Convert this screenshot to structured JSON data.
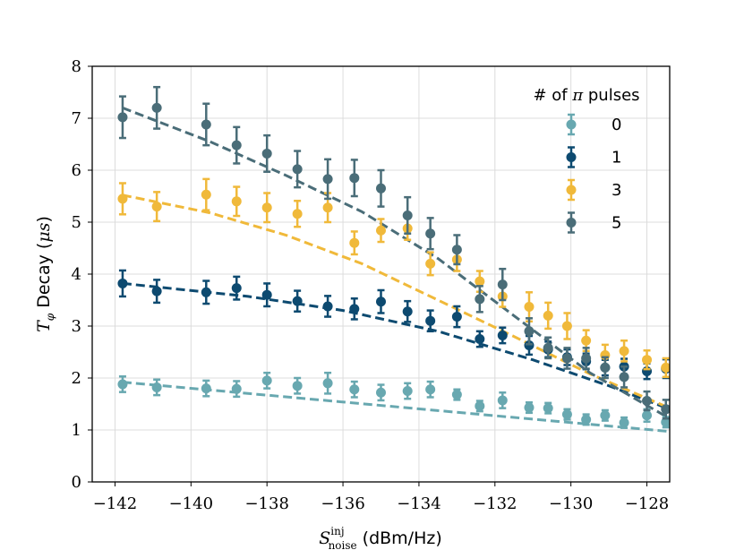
{
  "chart_data": {
    "type": "scatter",
    "title": "",
    "xlabel_main": "S",
    "xlabel_sup": "inj",
    "xlabel_sub": "noise",
    "xlabel_unit": " (dBm/Hz)",
    "ylabel_sym": "T",
    "ylabel_sub": "φ",
    "ylabel_text": " Decay (",
    "ylabel_unit": "μs",
    "ylabel_close": ")",
    "xlim": [
      -142.6,
      -127.4
    ],
    "ylim": [
      0,
      8
    ],
    "xticks": [
      -142,
      -140,
      -138,
      -136,
      -134,
      -132,
      -130,
      -128
    ],
    "xtick_labels": [
      "−142",
      "−140",
      "−138",
      "−136",
      "−134",
      "−132",
      "−130",
      "−128"
    ],
    "yticks": [
      0,
      1,
      2,
      3,
      4,
      5,
      6,
      7,
      8
    ],
    "ytick_labels": [
      "0",
      "1",
      "2",
      "3",
      "4",
      "5",
      "6",
      "7",
      "8"
    ],
    "grid": true,
    "legend_title_hash": "# of ",
    "legend_title_pi": "π",
    "legend_title_rest": " pulses",
    "legend_position": "top-right",
    "x": [
      -141.8,
      -140.9,
      -139.6,
      -138.8,
      -138.0,
      -137.2,
      -136.4,
      -135.7,
      -135.0,
      -134.3,
      -133.7,
      -133.0,
      -132.4,
      -131.8,
      -131.1,
      -130.6,
      -130.1,
      -129.6,
      -129.1,
      -128.6,
      -128.0,
      -127.5
    ],
    "series": [
      {
        "name": "0",
        "color": "#68a8b0",
        "values": [
          1.88,
          1.82,
          1.8,
          1.79,
          1.95,
          1.85,
          1.9,
          1.78,
          1.72,
          1.75,
          1.78,
          1.68,
          1.46,
          1.57,
          1.43,
          1.42,
          1.3,
          1.2,
          1.28,
          1.14,
          1.28,
          1.15
        ],
        "errors": [
          0.15,
          0.15,
          0.15,
          0.15,
          0.15,
          0.15,
          0.2,
          0.15,
          0.15,
          0.15,
          0.15,
          0.1,
          0.1,
          0.15,
          0.1,
          0.1,
          0.1,
          0.1,
          0.1,
          0.1,
          0.12,
          0.1
        ],
        "fit_x": [
          -141.8,
          -127.4
        ],
        "fit_y": [
          1.92,
          0.97
        ]
      },
      {
        "name": "1",
        "color": "#0d4a70",
        "values": [
          3.82,
          3.67,
          3.65,
          3.73,
          3.6,
          3.48,
          3.38,
          3.33,
          3.47,
          3.28,
          3.1,
          3.18,
          2.75,
          2.82,
          2.63,
          2.55,
          2.4,
          2.32,
          2.2,
          2.22,
          2.13,
          2.18
        ],
        "errors": [
          0.25,
          0.22,
          0.22,
          0.22,
          0.22,
          0.2,
          0.2,
          0.2,
          0.22,
          0.2,
          0.2,
          0.2,
          0.15,
          0.15,
          0.18,
          0.15,
          0.15,
          0.15,
          0.15,
          0.15,
          0.15,
          0.18
        ],
        "fit_x": [
          -141.8,
          -138.5,
          -136.0,
          -133.5,
          -131.0,
          -129.0,
          -127.4
        ],
        "fit_y": [
          3.82,
          3.57,
          3.3,
          2.9,
          2.35,
          1.85,
          1.4
        ]
      },
      {
        "name": "3",
        "color": "#f0b93a",
        "values": [
          5.45,
          5.3,
          5.53,
          5.4,
          5.28,
          5.16,
          5.28,
          4.6,
          4.84,
          4.88,
          4.2,
          4.28,
          3.86,
          3.57,
          3.37,
          3.2,
          3.0,
          2.72,
          2.44,
          2.52,
          2.35,
          2.2
        ],
        "errors": [
          0.3,
          0.28,
          0.3,
          0.28,
          0.28,
          0.25,
          0.28,
          0.22,
          0.22,
          0.22,
          0.22,
          0.22,
          0.2,
          0.2,
          0.28,
          0.25,
          0.25,
          0.2,
          0.2,
          0.2,
          0.18,
          0.18
        ],
        "fit_x": [
          -141.8,
          -139.5,
          -137.5,
          -135.5,
          -133.5,
          -131.5,
          -129.5,
          -127.4
        ],
        "fit_y": [
          5.52,
          5.18,
          4.75,
          4.2,
          3.5,
          2.8,
          2.08,
          1.42
        ]
      },
      {
        "name": "5",
        "color": "#4a6d78",
        "values": [
          7.02,
          7.2,
          6.88,
          6.48,
          6.32,
          6.02,
          5.83,
          5.85,
          5.65,
          5.13,
          4.78,
          4.47,
          3.52,
          3.8,
          2.9,
          2.58,
          2.38,
          2.38,
          2.2,
          2.02,
          1.56,
          1.4
        ],
        "errors": [
          0.4,
          0.4,
          0.4,
          0.35,
          0.35,
          0.35,
          0.38,
          0.35,
          0.35,
          0.35,
          0.3,
          0.28,
          0.25,
          0.3,
          0.25,
          0.2,
          0.2,
          0.2,
          0.2,
          0.2,
          0.18,
          0.18
        ],
        "fit_x": [
          -141.8,
          -139.5,
          -137.5,
          -135.5,
          -133.5,
          -131.5,
          -129.5,
          -127.4
        ],
        "fit_y": [
          7.2,
          6.55,
          5.9,
          5.2,
          4.3,
          3.2,
          2.1,
          1.22
        ]
      }
    ]
  }
}
